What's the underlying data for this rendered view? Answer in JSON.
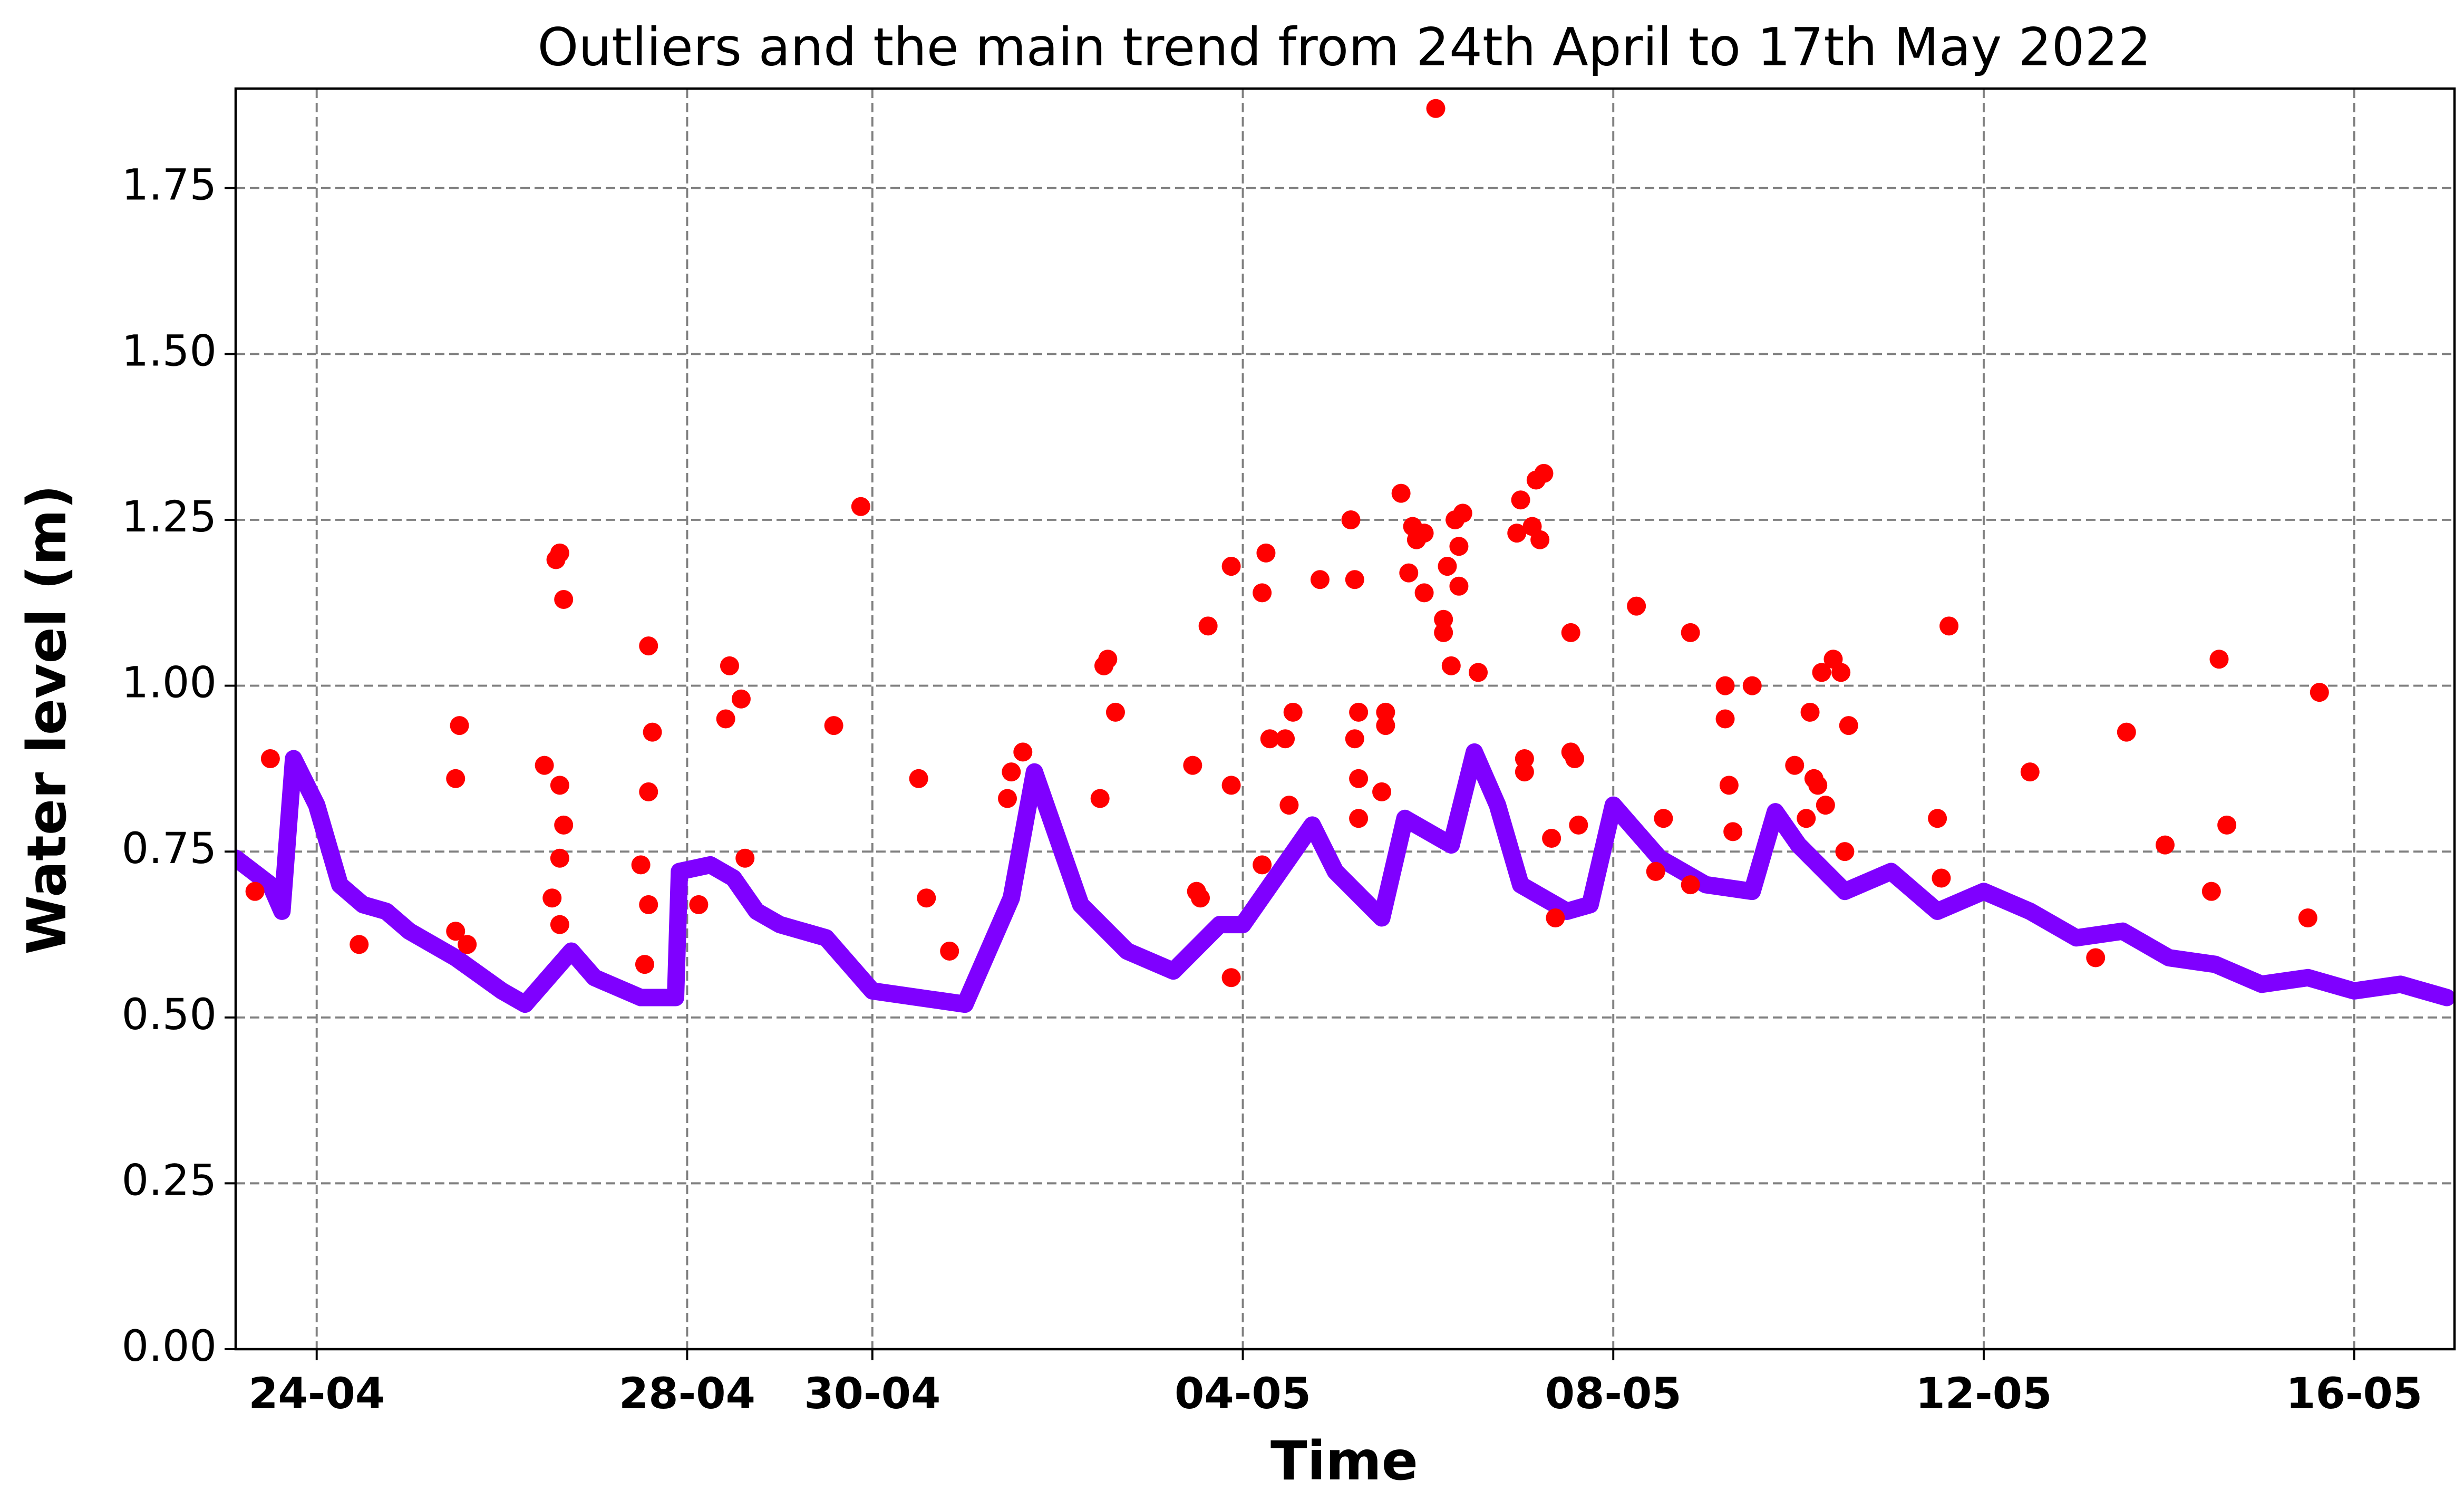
{
  "chart_data": {
    "type": "scatter",
    "title": "Outliers and the main trend from 24th April to 17th May 2022",
    "x_label": "Time",
    "y_label": "Water level (m)",
    "xlim": [
      "2022-04-23T03:00",
      "2022-05-17T02:00"
    ],
    "xticks": [
      {
        "value": "2022-04-24T00:00",
        "label": "24-04"
      },
      {
        "value": "2022-04-28T00:00",
        "label": "28-04"
      },
      {
        "value": "2022-04-30T00:00",
        "label": "30-04"
      },
      {
        "value": "2022-05-04T00:00",
        "label": "04-05"
      },
      {
        "value": "2022-05-08T00:00",
        "label": "08-05"
      },
      {
        "value": "2022-05-12T00:00",
        "label": "12-05"
      },
      {
        "value": "2022-05-16T00:00",
        "label": "16-05"
      }
    ],
    "ylim": [
      0,
      1.9
    ],
    "yticks": [
      {
        "value": 0,
        "label": "0.00"
      },
      {
        "value": 0.25,
        "label": "0.25"
      },
      {
        "value": 0.5,
        "label": "0.50"
      },
      {
        "value": 0.75,
        "label": "0.75"
      },
      {
        "value": 1,
        "label": "1.00"
      },
      {
        "value": 1.25,
        "label": "1.25"
      },
      {
        "value": 1.5,
        "label": "1.50"
      },
      {
        "value": 1.75,
        "label": "1.75"
      }
    ],
    "grid": true,
    "series": [
      {
        "type": "line",
        "color": "#7f00ff",
        "x": [
          "2022-04-23T03:00",
          "2022-04-23T12:00",
          "2022-04-23T15:00",
          "2022-04-23T18:00",
          "2022-04-24T00:00",
          "2022-04-24T06:00",
          "2022-04-24T12:00",
          "2022-04-24T18:00",
          "2022-04-25T00:00",
          "2022-04-25T12:00",
          "2022-04-26T00:00",
          "2022-04-26T06:00",
          "2022-04-26T12:00",
          "2022-04-26T18:00",
          "2022-04-27T00:00",
          "2022-04-27T12:00",
          "2022-04-27T21:00",
          "2022-04-27T22:00",
          "2022-04-28T06:00",
          "2022-04-28T12:00",
          "2022-04-28T18:00",
          "2022-04-29T00:00",
          "2022-04-29T12:00",
          "2022-04-30T00:00",
          "2022-04-30T12:00",
          "2022-05-01T00:00",
          "2022-05-01T12:00",
          "2022-05-01T18:00",
          "2022-05-02T00:00",
          "2022-05-02T06:00",
          "2022-05-02T18:00",
          "2022-05-03T06:00",
          "2022-05-03T18:00",
          "2022-05-04T00:00",
          "2022-05-04T12:00",
          "2022-05-04T18:00",
          "2022-05-05T00:00",
          "2022-05-05T12:00",
          "2022-05-05T18:00",
          "2022-05-06T06:00",
          "2022-05-06T12:00",
          "2022-05-06T18:00",
          "2022-05-07T00:00",
          "2022-05-07T12:00",
          "2022-05-07T18:00",
          "2022-05-08T00:00",
          "2022-05-08T12:00",
          "2022-05-09T00:00",
          "2022-05-09T12:00",
          "2022-05-09T18:00",
          "2022-05-10T00:00",
          "2022-05-10T12:00",
          "2022-05-11T00:00",
          "2022-05-11T12:00",
          "2022-05-12T00:00",
          "2022-05-12T12:00",
          "2022-05-13T00:00",
          "2022-05-13T12:00",
          "2022-05-14T00:00",
          "2022-05-14T12:00",
          "2022-05-15T00:00",
          "2022-05-15T12:00",
          "2022-05-16T00:00",
          "2022-05-16T12:00",
          "2022-05-17T00:00"
        ],
        "values": [
          0.74,
          0.7,
          0.66,
          0.89,
          0.82,
          0.7,
          0.67,
          0.66,
          0.63,
          0.59,
          0.54,
          0.52,
          0.56,
          0.6,
          0.56,
          0.53,
          0.53,
          0.72,
          0.73,
          0.71,
          0.66,
          0.64,
          0.62,
          0.54,
          0.53,
          0.52,
          0.68,
          0.87,
          0.77,
          0.67,
          0.6,
          0.57,
          0.64,
          0.64,
          0.74,
          0.79,
          0.72,
          0.65,
          0.8,
          0.76,
          0.9,
          0.82,
          0.7,
          0.66,
          0.67,
          0.82,
          0.74,
          0.7,
          0.69,
          0.81,
          0.76,
          0.69,
          0.72,
          0.66,
          0.69,
          0.66,
          0.62,
          0.63,
          0.59,
          0.58,
          0.55,
          0.56,
          0.54,
          0.55,
          0.53
        ]
      },
      {
        "type": "scatter",
        "color": "#ff0000",
        "x": [
          "2022-04-23T08:00",
          "2022-04-23T12:00",
          "2022-04-24T11:00",
          "2022-04-25T12:00",
          "2022-04-25T12:00",
          "2022-04-25T13:00",
          "2022-04-25T15:00",
          "2022-04-26T11:00",
          "2022-04-26T13:00",
          "2022-04-26T14:00",
          "2022-04-26T15:00",
          "2022-04-26T15:00",
          "2022-04-26T15:00",
          "2022-04-26T16:00",
          "2022-04-26T16:00",
          "2022-04-26T15:00",
          "2022-04-27T12:00",
          "2022-04-27T13:00",
          "2022-04-27T14:00",
          "2022-04-27T15:00",
          "2022-04-27T14:00",
          "2022-04-27T14:00",
          "2022-04-28T03:00",
          "2022-04-28T10:00",
          "2022-04-28T11:00",
          "2022-04-28T14:00",
          "2022-04-28T15:00",
          "2022-04-29T14:00",
          "2022-04-29T21:00",
          "2022-04-30T12:00",
          "2022-04-30T14:00",
          "2022-04-30T20:00",
          "2022-05-01T11:00",
          "2022-05-01T12:00",
          "2022-05-01T15:00",
          "2022-05-02T11:00",
          "2022-05-02T12:00",
          "2022-05-02T13:00",
          "2022-05-02T15:00",
          "2022-05-03T11:00",
          "2022-05-03T12:00",
          "2022-05-03T13:00",
          "2022-05-03T15:00",
          "2022-05-03T21:00",
          "2022-05-03T21:00",
          "2022-05-03T21:00",
          "2022-05-04T05:00",
          "2022-05-04T06:00",
          "2022-05-04T05:00",
          "2022-05-04T07:00",
          "2022-05-04T11:00",
          "2022-05-04T13:00",
          "2022-05-04T12:00",
          "2022-05-04T20:00",
          "2022-05-05T04:00",
          "2022-05-05T05:00",
          "2022-05-05T05:00",
          "2022-05-05T06:00",
          "2022-05-05T06:00",
          "2022-05-05T06:00",
          "2022-05-05T13:00",
          "2022-05-05T13:00",
          "2022-05-05T12:00",
          "2022-05-05T17:00",
          "2022-05-05T19:00",
          "2022-05-05T20:00",
          "2022-05-05T21:00",
          "2022-05-05T23:00",
          "2022-05-05T23:00",
          "2022-05-06T02:00",
          "2022-05-06T04:00",
          "2022-05-06T04:00",
          "2022-05-06T05:00",
          "2022-05-06T06:00",
          "2022-05-06T07:00",
          "2022-05-06T08:00",
          "2022-05-06T09:00",
          "2022-05-06T08:00",
          "2022-05-06T13:00",
          "2022-05-07T00:00",
          "2022-05-06T23:00",
          "2022-05-07T01:00",
          "2022-05-07T01:00",
          "2022-05-07T03:00",
          "2022-05-07T04:00",
          "2022-05-07T06:00",
          "2022-05-07T05:00",
          "2022-05-07T08:00",
          "2022-05-07T09:00",
          "2022-05-07T13:00",
          "2022-05-07T13:00",
          "2022-05-07T14:00",
          "2022-05-07T15:00",
          "2022-05-08T06:00",
          "2022-05-08T11:00",
          "2022-05-08T13:00",
          "2022-05-08T20:00",
          "2022-05-08T20:00",
          "2022-05-09T05:00",
          "2022-05-09T05:00",
          "2022-05-09T06:00",
          "2022-05-09T07:00",
          "2022-05-09T12:00",
          "2022-05-09T23:00",
          "2022-05-10T02:00",
          "2022-05-10T03:00",
          "2022-05-10T04:00",
          "2022-05-10T05:00",
          "2022-05-10T06:00",
          "2022-05-10T07:00",
          "2022-05-10T09:00",
          "2022-05-10T11:00",
          "2022-05-10T12:00",
          "2022-05-10T13:00",
          "2022-05-11T12:00",
          "2022-05-11T13:00",
          "2022-05-11T15:00",
          "2022-05-12T12:00",
          "2022-05-13T05:00",
          "2022-05-13T13:00",
          "2022-05-13T23:00",
          "2022-05-14T11:00",
          "2022-05-14T13:00",
          "2022-05-14T15:00",
          "2022-05-15T12:00",
          "2022-05-15T15:00"
        ],
        "values": [
          0.69,
          0.89,
          0.61,
          0.63,
          0.86,
          0.94,
          0.61,
          0.88,
          0.68,
          1.19,
          0.85,
          1.2,
          0.74,
          1.13,
          0.79,
          0.64,
          0.73,
          0.58,
          1.06,
          0.93,
          0.84,
          0.67,
          0.67,
          0.95,
          1.03,
          0.98,
          0.74,
          0.94,
          1.27,
          0.86,
          0.68,
          0.6,
          0.83,
          0.87,
          0.9,
          0.83,
          1.03,
          1.04,
          0.96,
          0.88,
          0.69,
          0.68,
          1.09,
          1.18,
          0.85,
          0.56,
          1.14,
          1.2,
          0.73,
          0.92,
          0.92,
          0.96,
          0.82,
          1.16,
          1.25,
          0.92,
          1.16,
          0.96,
          0.86,
          0.8,
          0.96,
          0.94,
          0.84,
          1.29,
          1.17,
          1.24,
          1.22,
          1.14,
          1.23,
          1.87,
          1.1,
          1.08,
          1.18,
          1.03,
          1.25,
          1.21,
          1.26,
          1.15,
          1.02,
          1.28,
          1.23,
          0.89,
          0.87,
          1.24,
          1.31,
          1.32,
          1.22,
          0.77,
          0.65,
          1.08,
          0.9,
          0.89,
          0.79,
          1.12,
          0.72,
          0.8,
          1.08,
          0.7,
          1.0,
          0.95,
          0.85,
          0.78,
          1.0,
          0.88,
          0.8,
          0.96,
          0.86,
          0.85,
          1.02,
          0.82,
          1.04,
          1.02,
          0.75,
          0.94,
          0.8,
          0.71,
          1.09,
          0.87,
          0.59,
          0.93,
          0.76,
          0.69,
          1.04,
          0.79,
          0.65,
          0.99
        ]
      }
    ]
  }
}
